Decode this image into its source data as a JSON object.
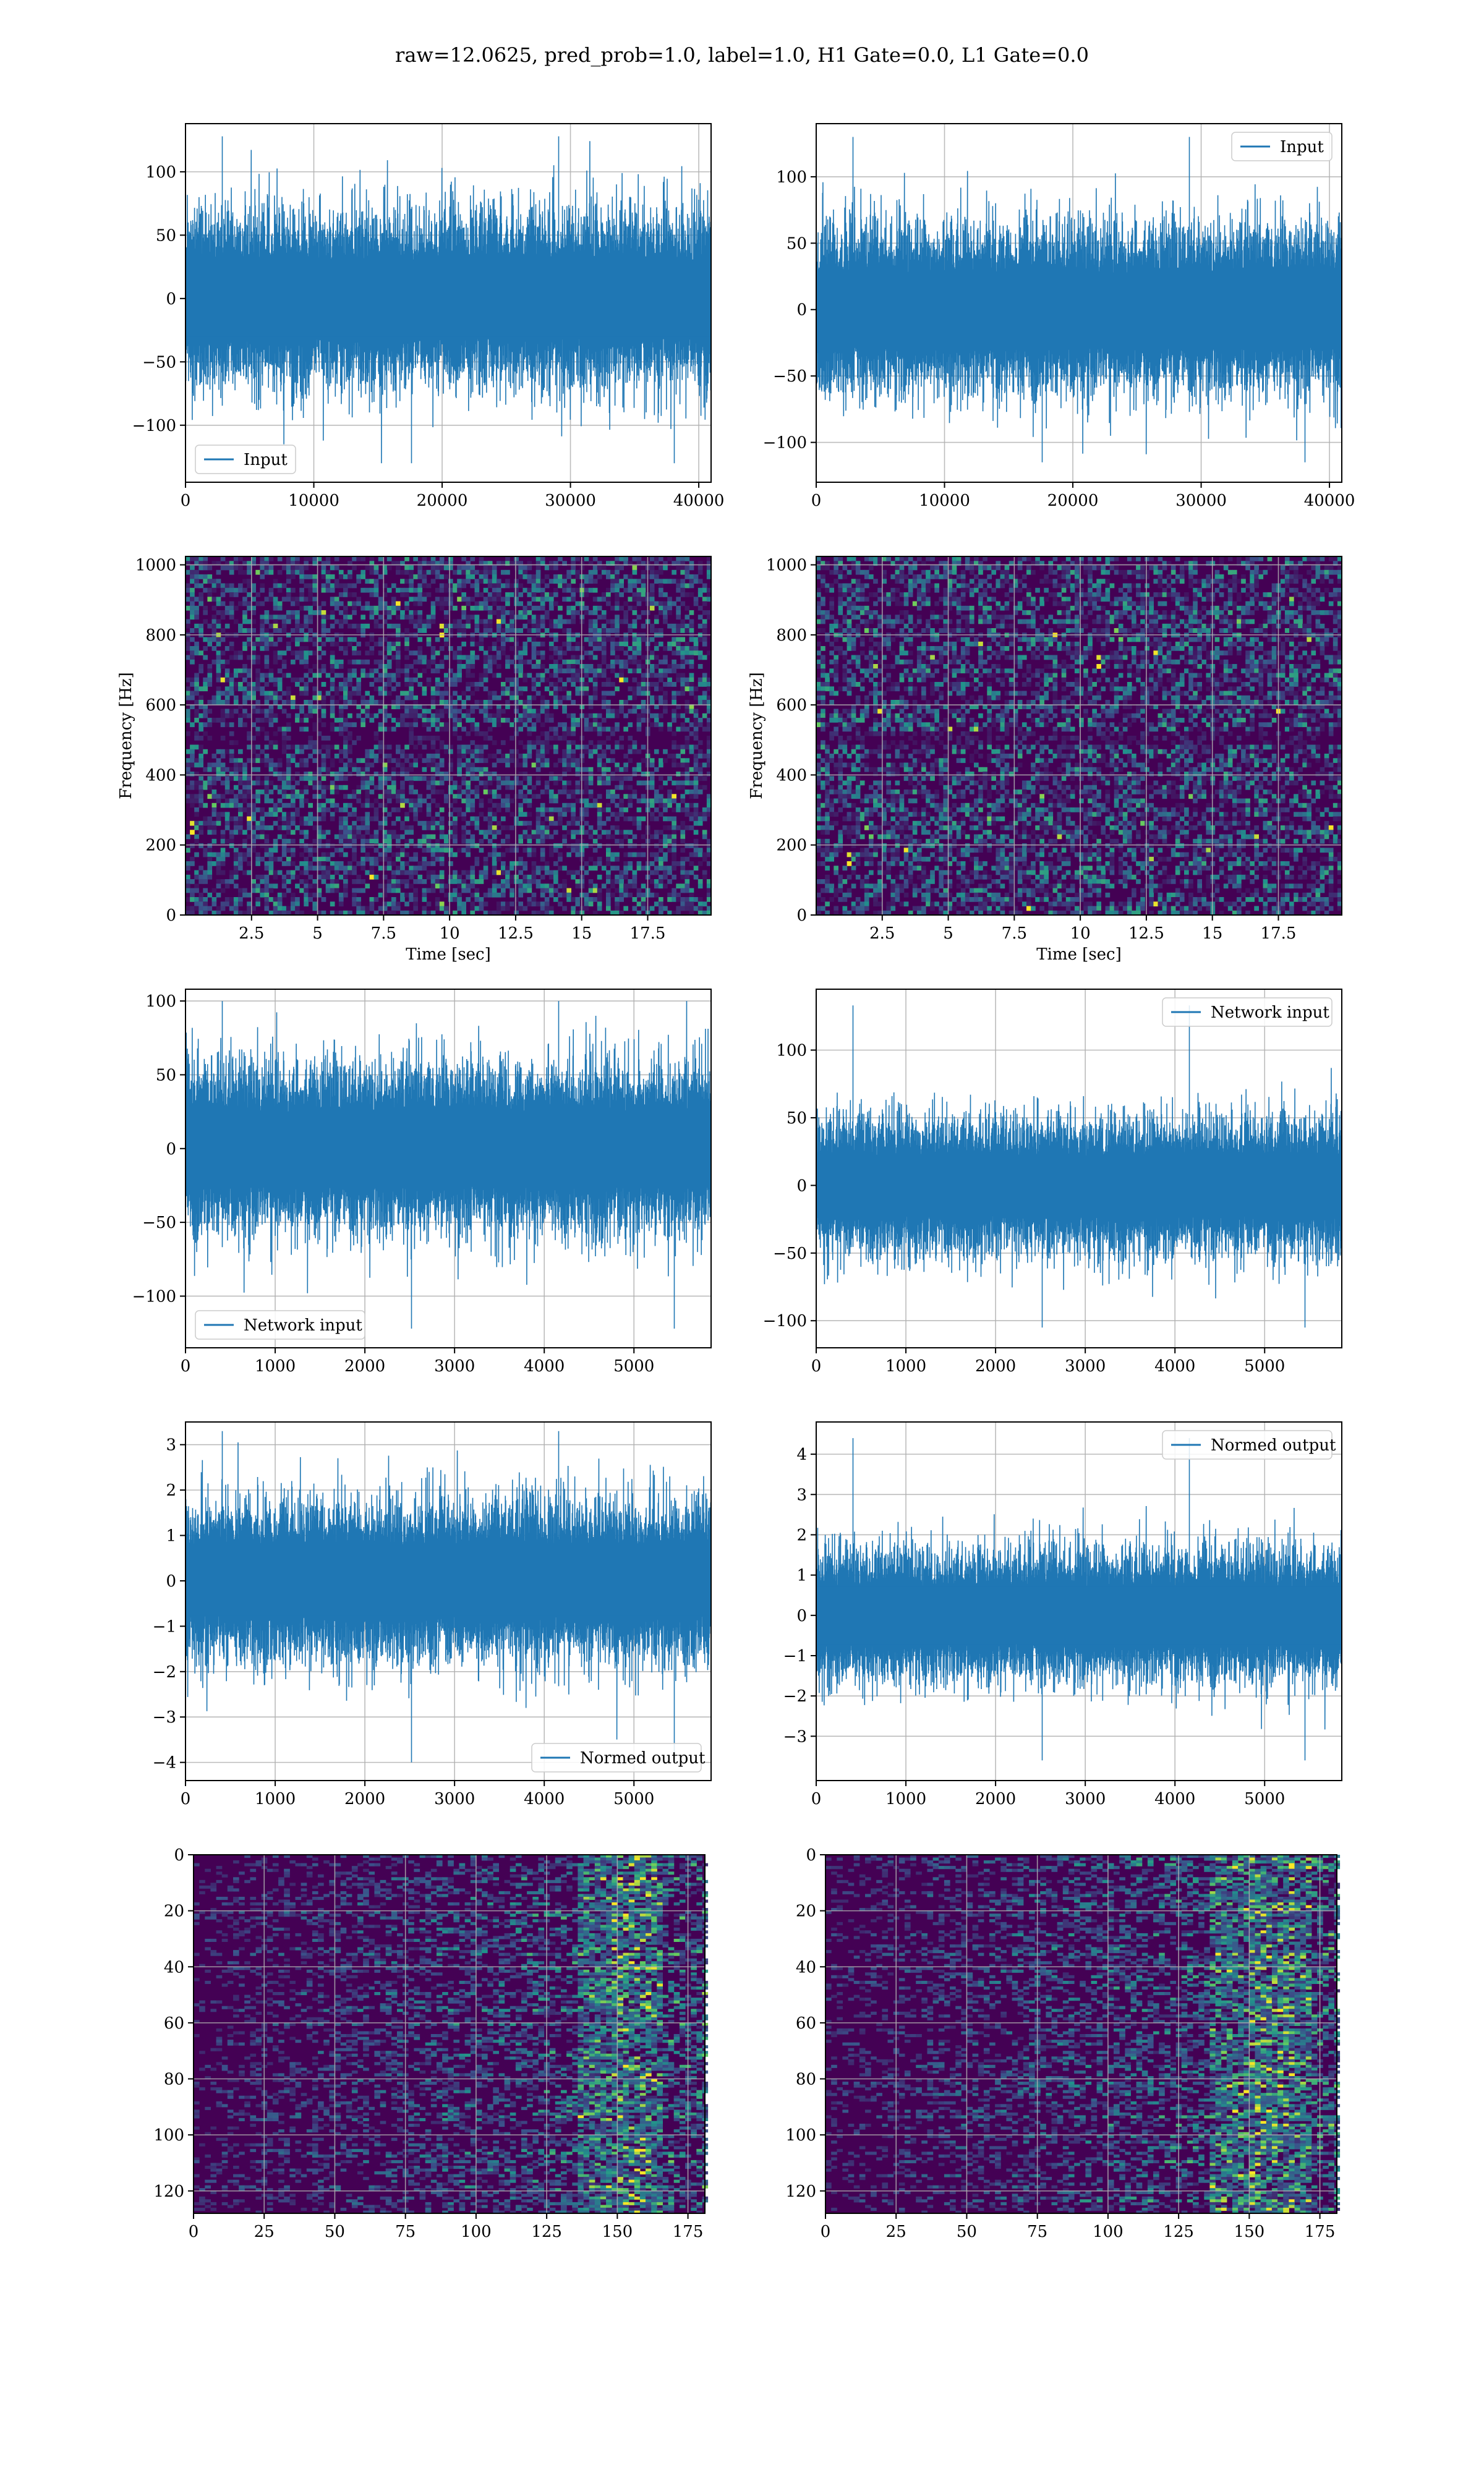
{
  "figure": {
    "title": "raw=12.0625, pred_prob=1.0, label=1.0, H1 Gate=0.0, L1 Gate=0.0"
  },
  "colors": {
    "line": "#1f77b4",
    "grid": "#b0b0b0",
    "viridis_dark": "#440154",
    "viridis_mid": "#21918c",
    "viridis_bright": "#fde725"
  },
  "chart_data": [
    {
      "id": "input-h1",
      "type": "line",
      "series": [
        {
          "name": "Input"
        }
      ],
      "x_range": [
        0,
        40960
      ],
      "ylim": [
        -145,
        138
      ],
      "envelope_y": [
        -55,
        55
      ],
      "spike_y": [
        -130,
        128
      ],
      "xticks": [
        0,
        10000,
        20000,
        30000,
        40000
      ],
      "yticks": [
        -100,
        -50,
        0,
        50,
        100
      ],
      "legend": "lower-left",
      "grid": true,
      "xlabel": "",
      "ylabel": ""
    },
    {
      "id": "input-l1",
      "type": "line",
      "series": [
        {
          "name": "Input"
        }
      ],
      "x_range": [
        0,
        40960
      ],
      "ylim": [
        -130,
        140
      ],
      "envelope_y": [
        -50,
        50
      ],
      "spike_y": [
        -115,
        130
      ],
      "xticks": [
        0,
        10000,
        20000,
        30000,
        40000
      ],
      "yticks": [
        -100,
        -50,
        0,
        50,
        100
      ],
      "legend": "upper-right",
      "grid": true,
      "xlabel": "",
      "ylabel": ""
    },
    {
      "id": "spectrogram-h1",
      "type": "heatmap",
      "xlim": [
        0,
        19.9
      ],
      "ylim": [
        0,
        1024
      ],
      "xticks": [
        2.5,
        5.0,
        7.5,
        10.0,
        12.5,
        15.0,
        17.5
      ],
      "yticks": [
        0,
        200,
        400,
        600,
        800,
        1000
      ],
      "xlabel": "Time [sec]",
      "ylabel": "Frequency [Hz]",
      "grid": true,
      "colormap": "viridis"
    },
    {
      "id": "spectrogram-l1",
      "type": "heatmap",
      "xlim": [
        0,
        19.9
      ],
      "ylim": [
        0,
        1024
      ],
      "xticks": [
        2.5,
        5.0,
        7.5,
        10.0,
        12.5,
        15.0,
        17.5
      ],
      "yticks": [
        0,
        200,
        400,
        600,
        800,
        1000
      ],
      "xlabel": "Time [sec]",
      "ylabel": "Frequency [Hz]",
      "grid": true,
      "colormap": "viridis"
    },
    {
      "id": "network-input-h1",
      "type": "line",
      "series": [
        {
          "name": "Network input"
        }
      ],
      "x_range": [
        0,
        5860
      ],
      "ylim": [
        -135,
        108
      ],
      "envelope_y": [
        -45,
        45
      ],
      "spike_y": [
        -122,
        100
      ],
      "xticks": [
        0,
        1000,
        2000,
        3000,
        4000,
        5000,
        6000
      ],
      "yticks": [
        -100,
        -50,
        0,
        50,
        100
      ],
      "legend": "lower-left",
      "grid": true,
      "xlabel": "",
      "ylabel": ""
    },
    {
      "id": "network-input-l1",
      "type": "line",
      "series": [
        {
          "name": "Network input"
        }
      ],
      "x_range": [
        0,
        5860
      ],
      "ylim": [
        -120,
        145
      ],
      "envelope_y": [
        -40,
        40
      ],
      "spike_y": [
        -105,
        133
      ],
      "xticks": [
        0,
        1000,
        2000,
        3000,
        4000,
        5000,
        6000
      ],
      "yticks": [
        -100,
        -50,
        0,
        50,
        100
      ],
      "legend": "upper-right",
      "grid": true,
      "xlabel": "",
      "ylabel": ""
    },
    {
      "id": "normed-output-h1",
      "type": "line",
      "series": [
        {
          "name": "Normed output"
        }
      ],
      "x_range": [
        0,
        5860
      ],
      "ylim": [
        -4.4,
        3.5
      ],
      "envelope_y": [
        -1.4,
        1.4
      ],
      "spike_y": [
        -4.0,
        3.3
      ],
      "xticks": [
        0,
        1000,
        2000,
        3000,
        4000,
        5000,
        6000
      ],
      "yticks": [
        -4,
        -3,
        -2,
        -1,
        0,
        1,
        2,
        3
      ],
      "legend": "lower-right",
      "grid": true,
      "xlabel": "",
      "ylabel": ""
    },
    {
      "id": "normed-output-l1",
      "type": "line",
      "series": [
        {
          "name": "Normed output"
        }
      ],
      "x_range": [
        0,
        5860
      ],
      "ylim": [
        -4.1,
        4.8
      ],
      "envelope_y": [
        -1.3,
        1.3
      ],
      "spike_y": [
        -3.6,
        4.4
      ],
      "xticks": [
        0,
        1000,
        2000,
        3000,
        4000,
        5000,
        6000
      ],
      "yticks": [
        -3,
        -2,
        -1,
        0,
        1,
        2,
        3,
        4
      ],
      "legend": "upper-right",
      "grid": true,
      "xlabel": "",
      "ylabel": ""
    },
    {
      "id": "q-transform-h1",
      "type": "heatmap",
      "xlim": [
        0,
        181
      ],
      "ylim": [
        128,
        0
      ],
      "xticks": [
        0,
        25,
        50,
        75,
        100,
        125,
        150,
        175
      ],
      "yticks": [
        0,
        20,
        40,
        60,
        80,
        100,
        120
      ],
      "bright_band_x": [
        150,
        160
      ],
      "grid": true,
      "colormap": "viridis",
      "xlabel": "",
      "ylabel": ""
    },
    {
      "id": "q-transform-l1",
      "type": "heatmap",
      "xlim": [
        0,
        181
      ],
      "ylim": [
        128,
        0
      ],
      "xticks": [
        0,
        25,
        50,
        75,
        100,
        125,
        150,
        175
      ],
      "yticks": [
        0,
        20,
        40,
        60,
        80,
        100,
        120
      ],
      "bright_band_x": [
        150,
        165
      ],
      "grid": true,
      "colormap": "viridis",
      "xlabel": "",
      "ylabel": ""
    }
  ]
}
